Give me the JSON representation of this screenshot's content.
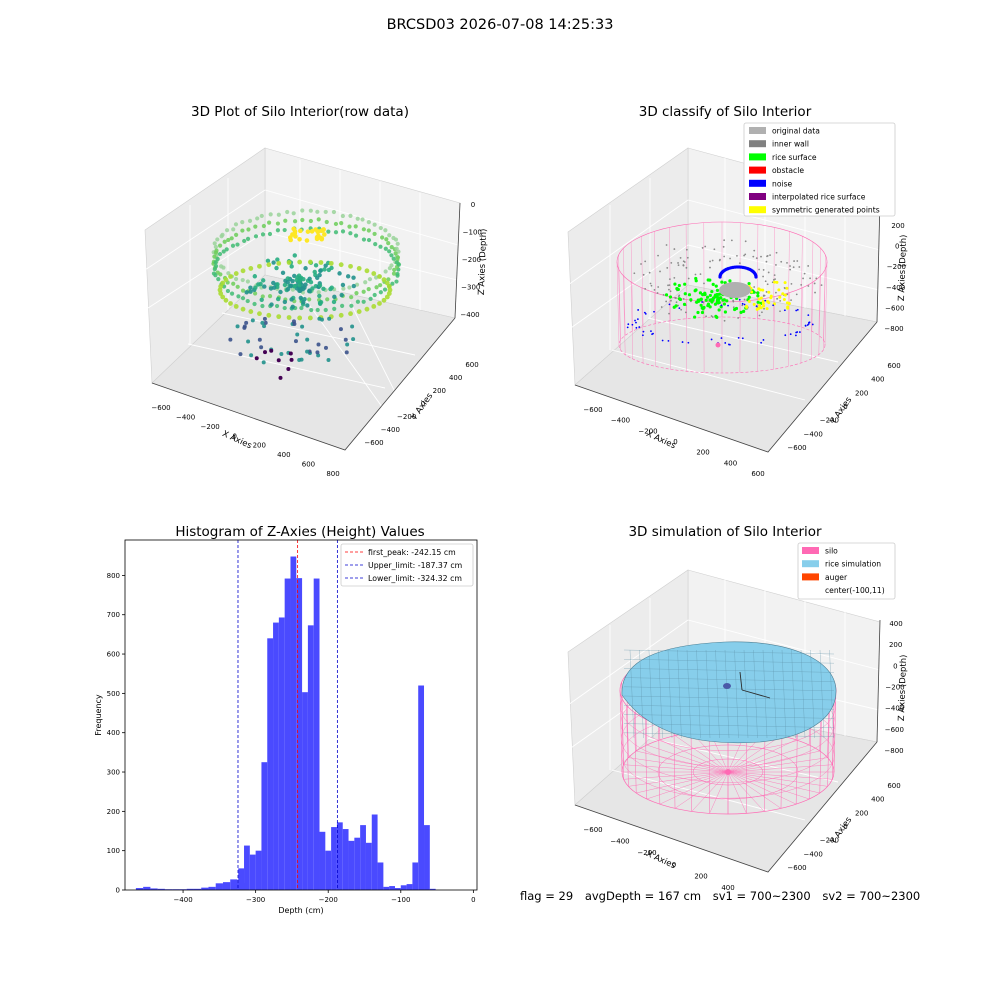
{
  "figure_title": "BRCSD03 2026-07-08 14:25:33",
  "status_line": {
    "flag": "flag = 29",
    "avg_depth": "avgDepth = 167 cm",
    "sv1": "sv1 = 700~2300",
    "sv2": "sv2 = 700~2300"
  },
  "colors": {
    "hist_bar": "#4a4aff",
    "first_peak_line": "#ff0000",
    "limit_line": "#0000cc",
    "silo_pink": "#ff69b4",
    "rice_blue": "#87ceeb",
    "auger": "#ff4500"
  },
  "chart_data": [
    {
      "type": "scatter",
      "title": "3D Plot of Silo Interior(row data)",
      "xlabel": "X Axies",
      "ylabel": "Y Axies",
      "zlabel": "Z Axies (Depth)",
      "xticks": [
        -600,
        -400,
        -200,
        0,
        200,
        400,
        600,
        800
      ],
      "yticks": [
        -600,
        -400,
        -200,
        0,
        200,
        400,
        600
      ],
      "zticks": [
        0,
        -100,
        -200,
        -300,
        -400
      ],
      "colormap": "viridis",
      "description": "point cloud of silo interior colored by depth"
    },
    {
      "type": "scatter",
      "title": "3D classify of Silo Interior",
      "xlabel": "X Axies",
      "ylabel": "Y Axies",
      "zlabel": "Z Axies (Depth)",
      "xticks": [
        -600,
        -400,
        -200,
        0,
        200,
        400,
        600
      ],
      "yticks": [
        -600,
        -400,
        -200,
        0,
        200,
        400,
        600
      ],
      "zticks": [
        200,
        0,
        -200,
        -400,
        -600,
        -800
      ],
      "legend": [
        {
          "label": "original data",
          "color": "#b0b0b0"
        },
        {
          "label": "inner wall",
          "color": "#808080"
        },
        {
          "label": "rice surface",
          "color": "#00ff00"
        },
        {
          "label": "obstacle",
          "color": "#ff0000"
        },
        {
          "label": "noise",
          "color": "#0000ff"
        },
        {
          "label": "interpolated rice surface",
          "color": "#800080"
        },
        {
          "label": "symmetric generated points",
          "color": "#ffff00"
        }
      ]
    },
    {
      "type": "bar",
      "title": "Histogram of Z-Axies (Height) Values",
      "xlabel": "Depth (cm)",
      "ylabel": "Frequency",
      "xlim": [
        -480,
        5
      ],
      "ylim": [
        0,
        890
      ],
      "xticks": [
        -400,
        -300,
        -200,
        -100,
        0
      ],
      "yticks": [
        0,
        100,
        200,
        300,
        400,
        500,
        600,
        700,
        800
      ],
      "bins": [
        [
          -465,
          -455,
          5
        ],
        [
          -455,
          -445,
          8
        ],
        [
          -445,
          -435,
          4
        ],
        [
          -435,
          -425,
          3
        ],
        [
          -425,
          -415,
          2
        ],
        [
          -415,
          -405,
          2
        ],
        [
          -405,
          -395,
          2
        ],
        [
          -395,
          -385,
          3
        ],
        [
          -385,
          -375,
          3
        ],
        [
          -375,
          -365,
          6
        ],
        [
          -365,
          -355,
          8
        ],
        [
          -355,
          -345,
          17
        ],
        [
          -345,
          -335,
          20
        ],
        [
          -335,
          -325,
          27
        ],
        [
          -325,
          -315,
          18
        ],
        [
          -324,
          -316,
          55
        ],
        [
          -316,
          -308,
          113
        ],
        [
          -308,
          -300,
          90
        ],
        [
          -300,
          -292,
          100
        ],
        [
          -292,
          -284,
          325
        ],
        [
          -284,
          -276,
          640
        ],
        [
          -276,
          -268,
          680
        ],
        [
          -268,
          -260,
          693
        ],
        [
          -260,
          -252,
          792
        ],
        [
          -252,
          -244,
          848
        ],
        [
          -244,
          -236,
          793
        ],
        [
          -236,
          -228,
          503
        ],
        [
          -228,
          -220,
          673
        ],
        [
          -220,
          -212,
          792
        ],
        [
          -212,
          -204,
          148
        ],
        [
          -204,
          -196,
          100
        ],
        [
          -196,
          -188,
          160
        ],
        [
          -188,
          -180,
          172
        ],
        [
          -180,
          -172,
          155
        ],
        [
          -172,
          -164,
          125
        ],
        [
          -164,
          -156,
          133
        ],
        [
          -156,
          -148,
          165
        ],
        [
          -148,
          -140,
          120
        ],
        [
          -140,
          -132,
          192
        ],
        [
          -132,
          -124,
          70
        ],
        [
          -124,
          -116,
          8
        ],
        [
          -116,
          -108,
          10
        ],
        [
          -108,
          -100,
          5
        ],
        [
          -100,
          -92,
          12
        ],
        [
          -92,
          -84,
          15
        ],
        [
          -84,
          -76,
          70
        ],
        [
          -76,
          -68,
          520
        ],
        [
          -68,
          -60,
          165
        ],
        [
          -60,
          -52,
          3
        ]
      ],
      "lines": [
        {
          "label": "first_peak: -242.15 cm",
          "x": -242.15,
          "color": "#ff0000"
        },
        {
          "label": "Upper_limit: -187.37 cm",
          "x": -187.37,
          "color": "#0000cc"
        },
        {
          "label": "Lower_limit: -324.32 cm",
          "x": -324.32,
          "color": "#0000cc"
        }
      ]
    },
    {
      "type": "surface",
      "title": "3D simulation of Silo Interior",
      "xlabel": "X Axies",
      "ylabel": "Y Axies",
      "zlabel": "Z Axies (Depth)",
      "xticks": [
        -600,
        -400,
        -200,
        0,
        200,
        400
      ],
      "yticks": [
        -600,
        -400,
        -200,
        0,
        200,
        400,
        600
      ],
      "zticks": [
        400,
        200,
        0,
        -200,
        -400,
        -600,
        -800
      ],
      "legend": [
        {
          "label": "silo",
          "color": "#ff69b4"
        },
        {
          "label": "rice simulation",
          "color": "#87ceeb"
        },
        {
          "label": "auger",
          "color": "#ff4500"
        },
        {
          "label": "center(-100,11)",
          "color": ""
        }
      ]
    }
  ]
}
